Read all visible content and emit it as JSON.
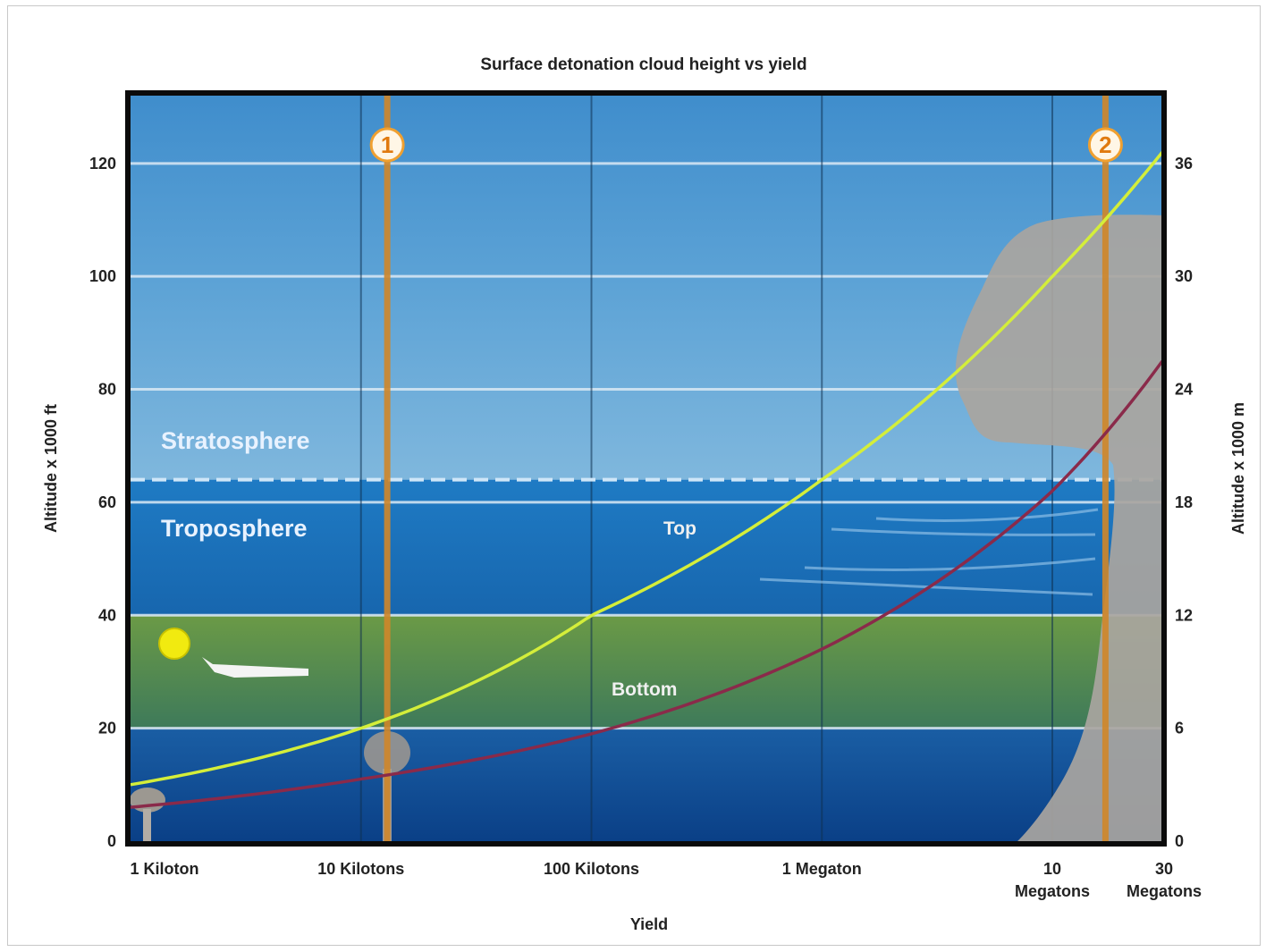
{
  "chart_data": {
    "type": "line",
    "title": "Surface detonation cloud height vs yield",
    "xlabel": "Yield",
    "ylabel_left": "Altitude x 1000 ft",
    "ylabel_right": "Altitude x 1000 m",
    "x_scale": "log",
    "x_range_kilotons": [
      1,
      30000
    ],
    "x_ticks": [
      {
        "value": 1,
        "label": [
          "1 Kiloton"
        ]
      },
      {
        "value": 10,
        "label": [
          "10 Kilotons"
        ]
      },
      {
        "value": 100,
        "label": [
          "100 Kilotons"
        ]
      },
      {
        "value": 1000,
        "label": [
          "1 Megaton"
        ]
      },
      {
        "value": 10000,
        "label": [
          "10",
          "Megatons"
        ]
      },
      {
        "value": 30000,
        "label": [
          "30",
          "Megatons"
        ]
      }
    ],
    "ylim_left_kft": [
      0,
      120
    ],
    "yticks_left": [
      "0",
      "20",
      "40",
      "60",
      "80",
      "100",
      "120"
    ],
    "ylim_right_km": [
      0,
      36
    ],
    "yticks_right": [
      "0",
      "6",
      "12",
      "18",
      "24",
      "30",
      "36"
    ],
    "grid": true,
    "series": [
      {
        "name": "Top",
        "color": "#d4ee3a",
        "points": [
          [
            1,
            10
          ],
          [
            10,
            20
          ],
          [
            100,
            40
          ],
          [
            1000,
            64
          ],
          [
            10000,
            100
          ],
          [
            30000,
            122
          ]
        ]
      },
      {
        "name": "Bottom",
        "color": "#8a2a4a",
        "points": [
          [
            1,
            6
          ],
          [
            10,
            11
          ],
          [
            100,
            19
          ],
          [
            1000,
            34
          ],
          [
            10000,
            62
          ],
          [
            30000,
            85
          ]
        ]
      }
    ],
    "regions": [
      {
        "label": "Stratosphere"
      },
      {
        "label": "Troposphere"
      }
    ],
    "region_boundaries_kft": {
      "tropopause": 64,
      "green_band": [
        20,
        40
      ]
    },
    "markers": [
      {
        "label": "1",
        "x": 13
      },
      {
        "label": "2",
        "x": 17000
      }
    ],
    "colors": {
      "sky_top": "#4e92c8",
      "sky_mid": "#1f76bd",
      "sky_low": "#0d4e98",
      "band_green": "#5b8c42",
      "cloud": "#a9a5a0",
      "marker_line": "#d0872a",
      "grid_line": "#dbe9f5"
    }
  }
}
